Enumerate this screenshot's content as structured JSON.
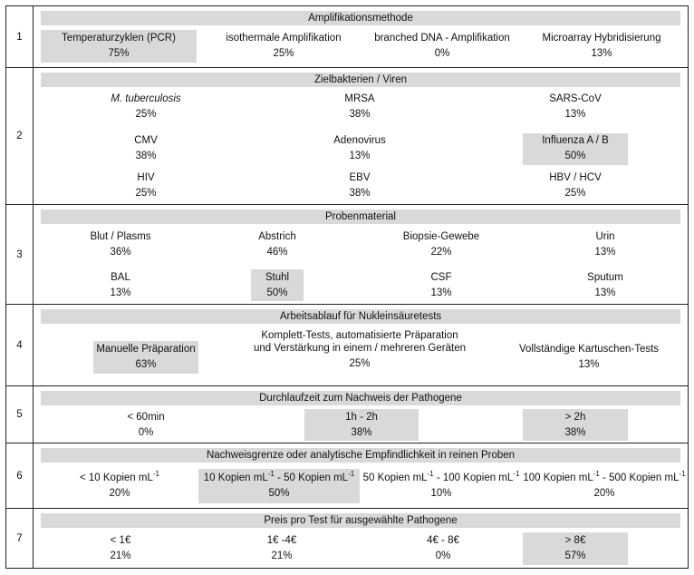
{
  "rows": [
    {
      "number": "1",
      "title": "Amplifikationsmethode",
      "items": [
        {
          "label": "Temperaturzyklen (PCR)",
          "value": "75%"
        },
        {
          "label": "isothermale Amplifikation",
          "value": "25%"
        },
        {
          "label": "branched DNA - Amplifikation",
          "value": "0%"
        },
        {
          "label": "Microarray Hybridisierung",
          "value": "13%"
        }
      ]
    },
    {
      "number": "2",
      "title": "Zielbakterien / Viren",
      "items": [
        {
          "label": "M. tuberculosis",
          "value": "25%"
        },
        {
          "label": "MRSA",
          "value": "38%"
        },
        {
          "label": "SARS-CoV",
          "value": "13%"
        },
        {
          "label": "CMV",
          "value": "38%"
        },
        {
          "label": "Adenovirus",
          "value": "13%"
        },
        {
          "label": "Influenza A / B",
          "value": "50%"
        },
        {
          "label": "HIV",
          "value": "25%"
        },
        {
          "label": "EBV",
          "value": "38%"
        },
        {
          "label": "HBV / HCV",
          "value": "25%"
        }
      ]
    },
    {
      "number": "3",
      "title": "Probenmaterial",
      "items": [
        {
          "label": "Blut / Plasms",
          "value": "36%"
        },
        {
          "label": "Abstrich",
          "value": "46%"
        },
        {
          "label": "Biopsie-Gewebe",
          "value": "22%"
        },
        {
          "label": "Urin",
          "value": "13%"
        },
        {
          "label": "BAL",
          "value": "13%"
        },
        {
          "label": "Stuhl",
          "value": "50%"
        },
        {
          "label": "CSF",
          "value": "13%"
        },
        {
          "label": "Sputum",
          "value": "13%"
        }
      ]
    },
    {
      "number": "4",
      "title": "Arbeitsablauf für Nukleinsäuretests",
      "items": [
        {
          "label": "Manuelle Präparation",
          "value": "63%"
        },
        {
          "label_line1": "Komplett-Tests, automatisierte Präparation",
          "label_line2": "und  Verstärkung in einem / mehreren Geräten",
          "value": "25%"
        },
        {
          "label": "Vollständige Kartuschen-Tests",
          "value": "13%"
        }
      ]
    },
    {
      "number": "5",
      "title": "Durchlaufzeit zum Nachweis der Pathogene",
      "items": [
        {
          "label": "< 60min",
          "value": "0%"
        },
        {
          "label": "1h - 2h",
          "value": "38%"
        },
        {
          "label": "> 2h",
          "value": "38%"
        }
      ]
    },
    {
      "number": "6",
      "title": "Nachweisgrenze oder analytische Empfindlichkeit in reinen Proben",
      "unit_base": "Kopien mL",
      "unit_exp": "-1",
      "items": [
        {
          "prefix": "< 10",
          "value": "20%"
        },
        {
          "prefix": "10 Kopien mL",
          "sup_mid": "-1",
          "mid": " - 50",
          "value": "50%"
        },
        {
          "prefix": "50 Kopien mL",
          "sup_mid": "-1",
          "mid": " - 100",
          "value": "10%"
        },
        {
          "prefix": "100 Kopien mL",
          "sup_mid": "-1",
          "mid": " - 500",
          "value": "20%"
        }
      ]
    },
    {
      "number": "7",
      "title": "Preis pro Test für ausgewählte Pathogene",
      "items": [
        {
          "label": "< 1€",
          "value": "21%"
        },
        {
          "label": "1€ -4€",
          "value": "21%"
        },
        {
          "label": "4€ - 8€",
          "value": "0%"
        },
        {
          "label": "> 8€",
          "value": "57%"
        }
      ]
    }
  ],
  "highlight_color": "#d9d9d9"
}
